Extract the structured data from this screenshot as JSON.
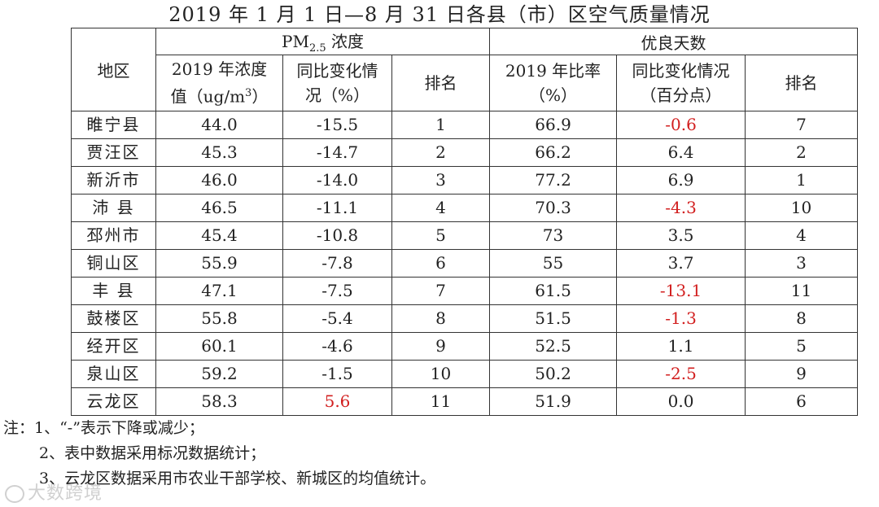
{
  "title": "2019 年 1 月 1 日—8 月 31 日各县（市）区空气质量情况",
  "headers": {
    "region": "地区",
    "pm_group_prefix": "PM",
    "pm_group_sub": "2.5",
    "pm_group_suffix": " 浓度",
    "days_group": "优良天数",
    "pm_conc_line1": "2019 年浓度",
    "pm_conc_line2_prefix": "值（ug/m",
    "pm_conc_line2_sup": "3",
    "pm_conc_line2_suffix": "）",
    "pm_change_line1": "同比变化情",
    "pm_change_line2": "况（%）",
    "pm_rank": "排名",
    "days_rate_line1": "2019 年比率",
    "days_rate_line2": "（%）",
    "days_change_line1": "同比变化情况",
    "days_change_line2": "（百分点）",
    "days_rank": "排名"
  },
  "rows": [
    {
      "region": "睢宁县",
      "pm": "44.0",
      "pm_change": "-15.5",
      "pm_rank": "1",
      "rate": "66.9",
      "rate_change": "-0.6",
      "days_rank": "7"
    },
    {
      "region": "贾汪区",
      "pm": "45.3",
      "pm_change": "-14.7",
      "pm_rank": "2",
      "rate": "66.2",
      "rate_change": "6.4",
      "days_rank": "2"
    },
    {
      "region": "新沂市",
      "pm": "46.0",
      "pm_change": "-14.0",
      "pm_rank": "3",
      "rate": "77.2",
      "rate_change": "6.9",
      "days_rank": "1"
    },
    {
      "region": "沛 县",
      "pm": "46.5",
      "pm_change": "-11.1",
      "pm_rank": "4",
      "rate": "70.3",
      "rate_change": "-4.3",
      "days_rank": "10"
    },
    {
      "region": "邳州市",
      "pm": "45.4",
      "pm_change": "-10.8",
      "pm_rank": "5",
      "rate": "73",
      "rate_change": "3.5",
      "days_rank": "4"
    },
    {
      "region": "铜山区",
      "pm": "55.9",
      "pm_change": "-7.8",
      "pm_rank": "6",
      "rate": "55",
      "rate_change": "3.7",
      "days_rank": "3"
    },
    {
      "region": "丰 县",
      "pm": "47.1",
      "pm_change": "-7.5",
      "pm_rank": "7",
      "rate": "61.5",
      "rate_change": "-13.1",
      "days_rank": "11"
    },
    {
      "region": "鼓楼区",
      "pm": "55.8",
      "pm_change": "-5.4",
      "pm_rank": "8",
      "rate": "51.5",
      "rate_change": "-1.3",
      "days_rank": "8"
    },
    {
      "region": "经开区",
      "pm": "60.1",
      "pm_change": "-4.6",
      "pm_rank": "9",
      "rate": "52.5",
      "rate_change": "1.1",
      "days_rank": "5"
    },
    {
      "region": "泉山区",
      "pm": "59.2",
      "pm_change": "-1.5",
      "pm_rank": "10",
      "rate": "50.2",
      "rate_change": "-2.5",
      "days_rank": "9"
    },
    {
      "region": "云龙区",
      "pm": "58.3",
      "pm_change": "5.6",
      "pm_rank": "11",
      "rate": "51.9",
      "rate_change": "0.0",
      "days_rank": "6"
    }
  ],
  "highlight_color": "#d21f1f",
  "highlighted_cells": [
    {
      "row": 0,
      "field": "rate_change"
    },
    {
      "row": 3,
      "field": "rate_change"
    },
    {
      "row": 6,
      "field": "rate_change"
    },
    {
      "row": 7,
      "field": "rate_change"
    },
    {
      "row": 9,
      "field": "rate_change"
    },
    {
      "row": 10,
      "field": "pm_change"
    }
  ],
  "notes": [
    "注：1、“-”表示下降或减少；",
    "2、表中数据采用标况数据统计；",
    "3、云龙区数据采用市农业干部学校、新城区的均值统计。"
  ],
  "watermark": "大数跨境"
}
